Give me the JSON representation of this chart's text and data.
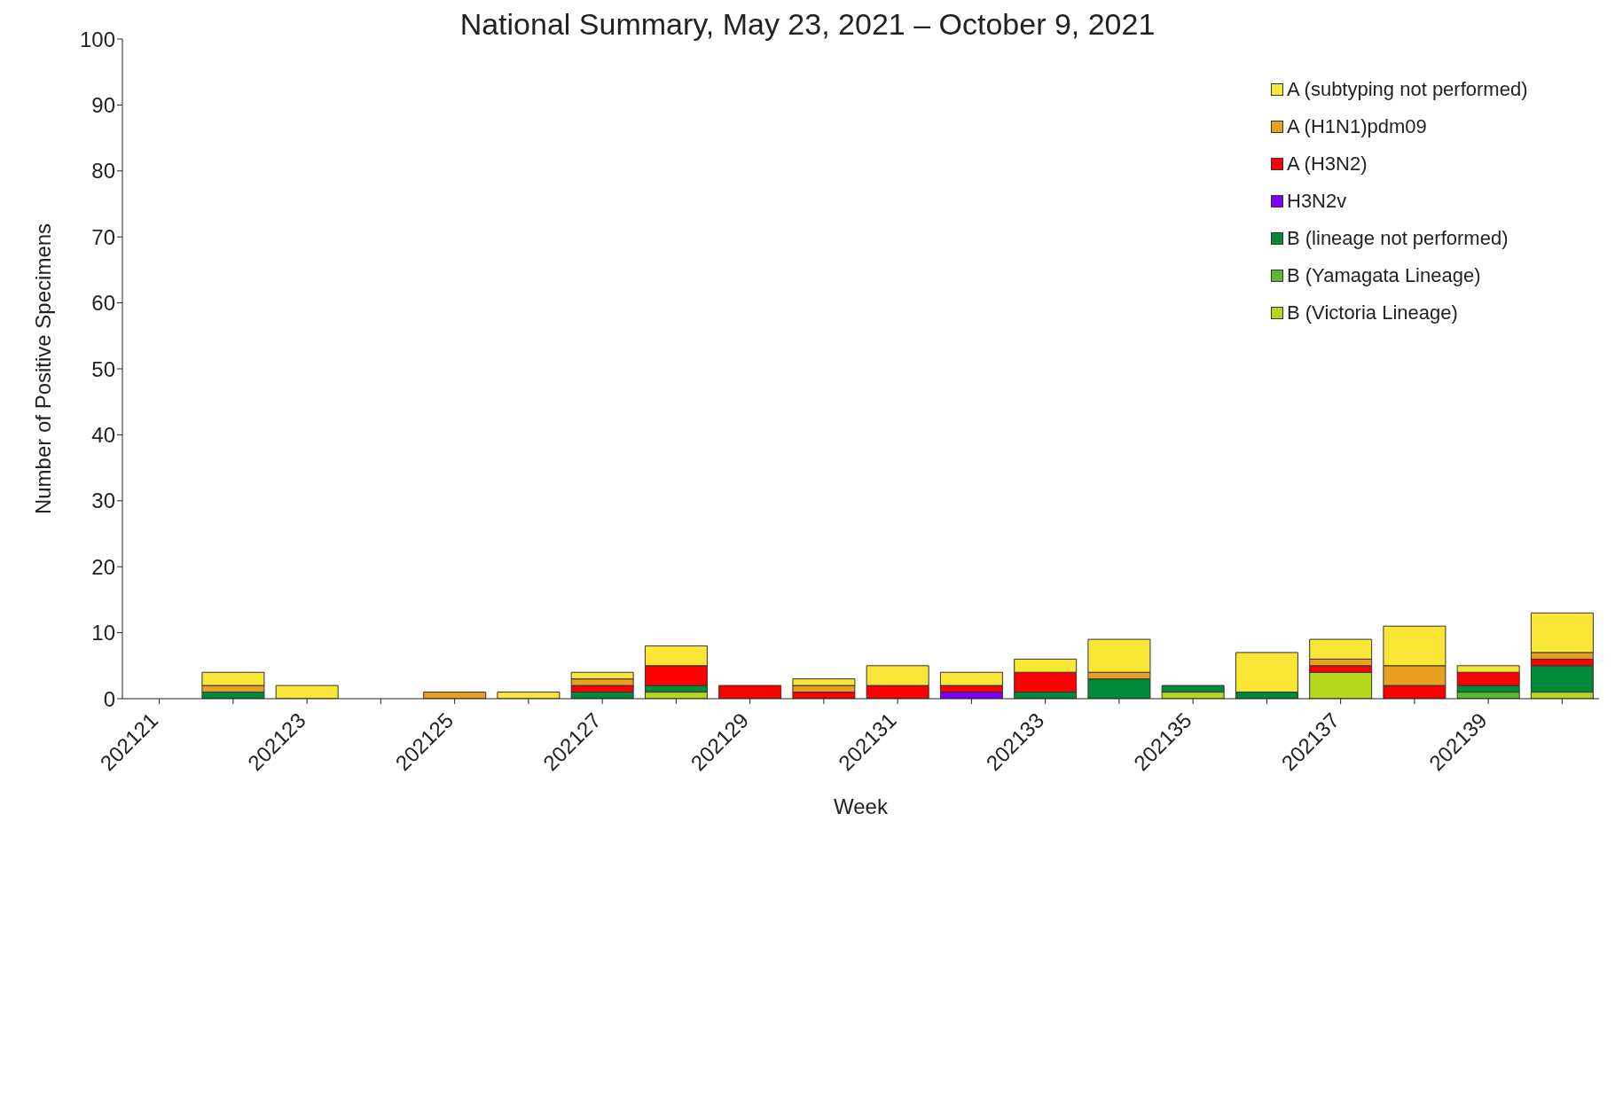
{
  "chart_data": {
    "type": "bar",
    "title": "National Summary, May 23, 2021 – October 9, 2021",
    "xlabel": "Week",
    "ylabel": "Number of Positive Specimens",
    "categories": [
      "202121",
      null,
      "202123",
      null,
      "202125",
      null,
      "202127",
      null,
      "202129",
      null,
      "202131",
      null,
      "202133",
      null,
      "202135",
      null,
      "202137",
      null,
      "202139",
      null
    ],
    "stacked": true,
    "ylim": [
      0,
      100
    ],
    "yticks": [
      0,
      10,
      20,
      30,
      40,
      50,
      60,
      70,
      80,
      90,
      100
    ],
    "grid": false,
    "legend": "top right",
    "series": [
      {
        "name": "B (Victoria Lineage)",
        "color": "#b5d91a",
        "values": [
          0,
          0,
          0,
          0,
          0,
          0,
          0,
          1,
          0,
          0,
          0,
          0,
          0,
          0,
          1,
          0,
          4,
          0,
          0,
          1
        ]
      },
      {
        "name": "B (Yamagata Lineage)",
        "color": "#5cb82e",
        "values": [
          0,
          0,
          0,
          0,
          0,
          0,
          0,
          0,
          0,
          0,
          0,
          0,
          0,
          0,
          0,
          0,
          0,
          0,
          1,
          0
        ]
      },
      {
        "name": "B (lineage not performed)",
        "color": "#008a3a",
        "values": [
          0,
          1,
          0,
          0,
          0,
          0,
          1,
          1,
          0,
          0,
          0,
          0,
          1,
          3,
          1,
          1,
          0,
          0,
          1,
          4
        ]
      },
      {
        "name": "H3N2v",
        "color": "#8000ff",
        "values": [
          0,
          0,
          0,
          0,
          0,
          0,
          0,
          0,
          0,
          0,
          0,
          1,
          0,
          0,
          0,
          0,
          0,
          0,
          0,
          0
        ]
      },
      {
        "name": "A (H3N2)",
        "color": "#ff0000",
        "values": [
          0,
          0,
          0,
          0,
          0,
          0,
          1,
          3,
          2,
          1,
          2,
          1,
          3,
          0,
          0,
          0,
          1,
          2,
          2,
          1
        ]
      },
      {
        "name": "A (H1N1)pdm09",
        "color": "#e8a020",
        "values": [
          0,
          1,
          0,
          0,
          1,
          0,
          1,
          0,
          0,
          1,
          0,
          0,
          0,
          1,
          0,
          0,
          1,
          3,
          0,
          1
        ]
      },
      {
        "name": "A (subtyping not performed)",
        "color": "#f9e636",
        "values": [
          0,
          2,
          2,
          0,
          0,
          1,
          1,
          3,
          0,
          1,
          3,
          2,
          2,
          5,
          0,
          6,
          3,
          6,
          1,
          6
        ]
      }
    ]
  }
}
